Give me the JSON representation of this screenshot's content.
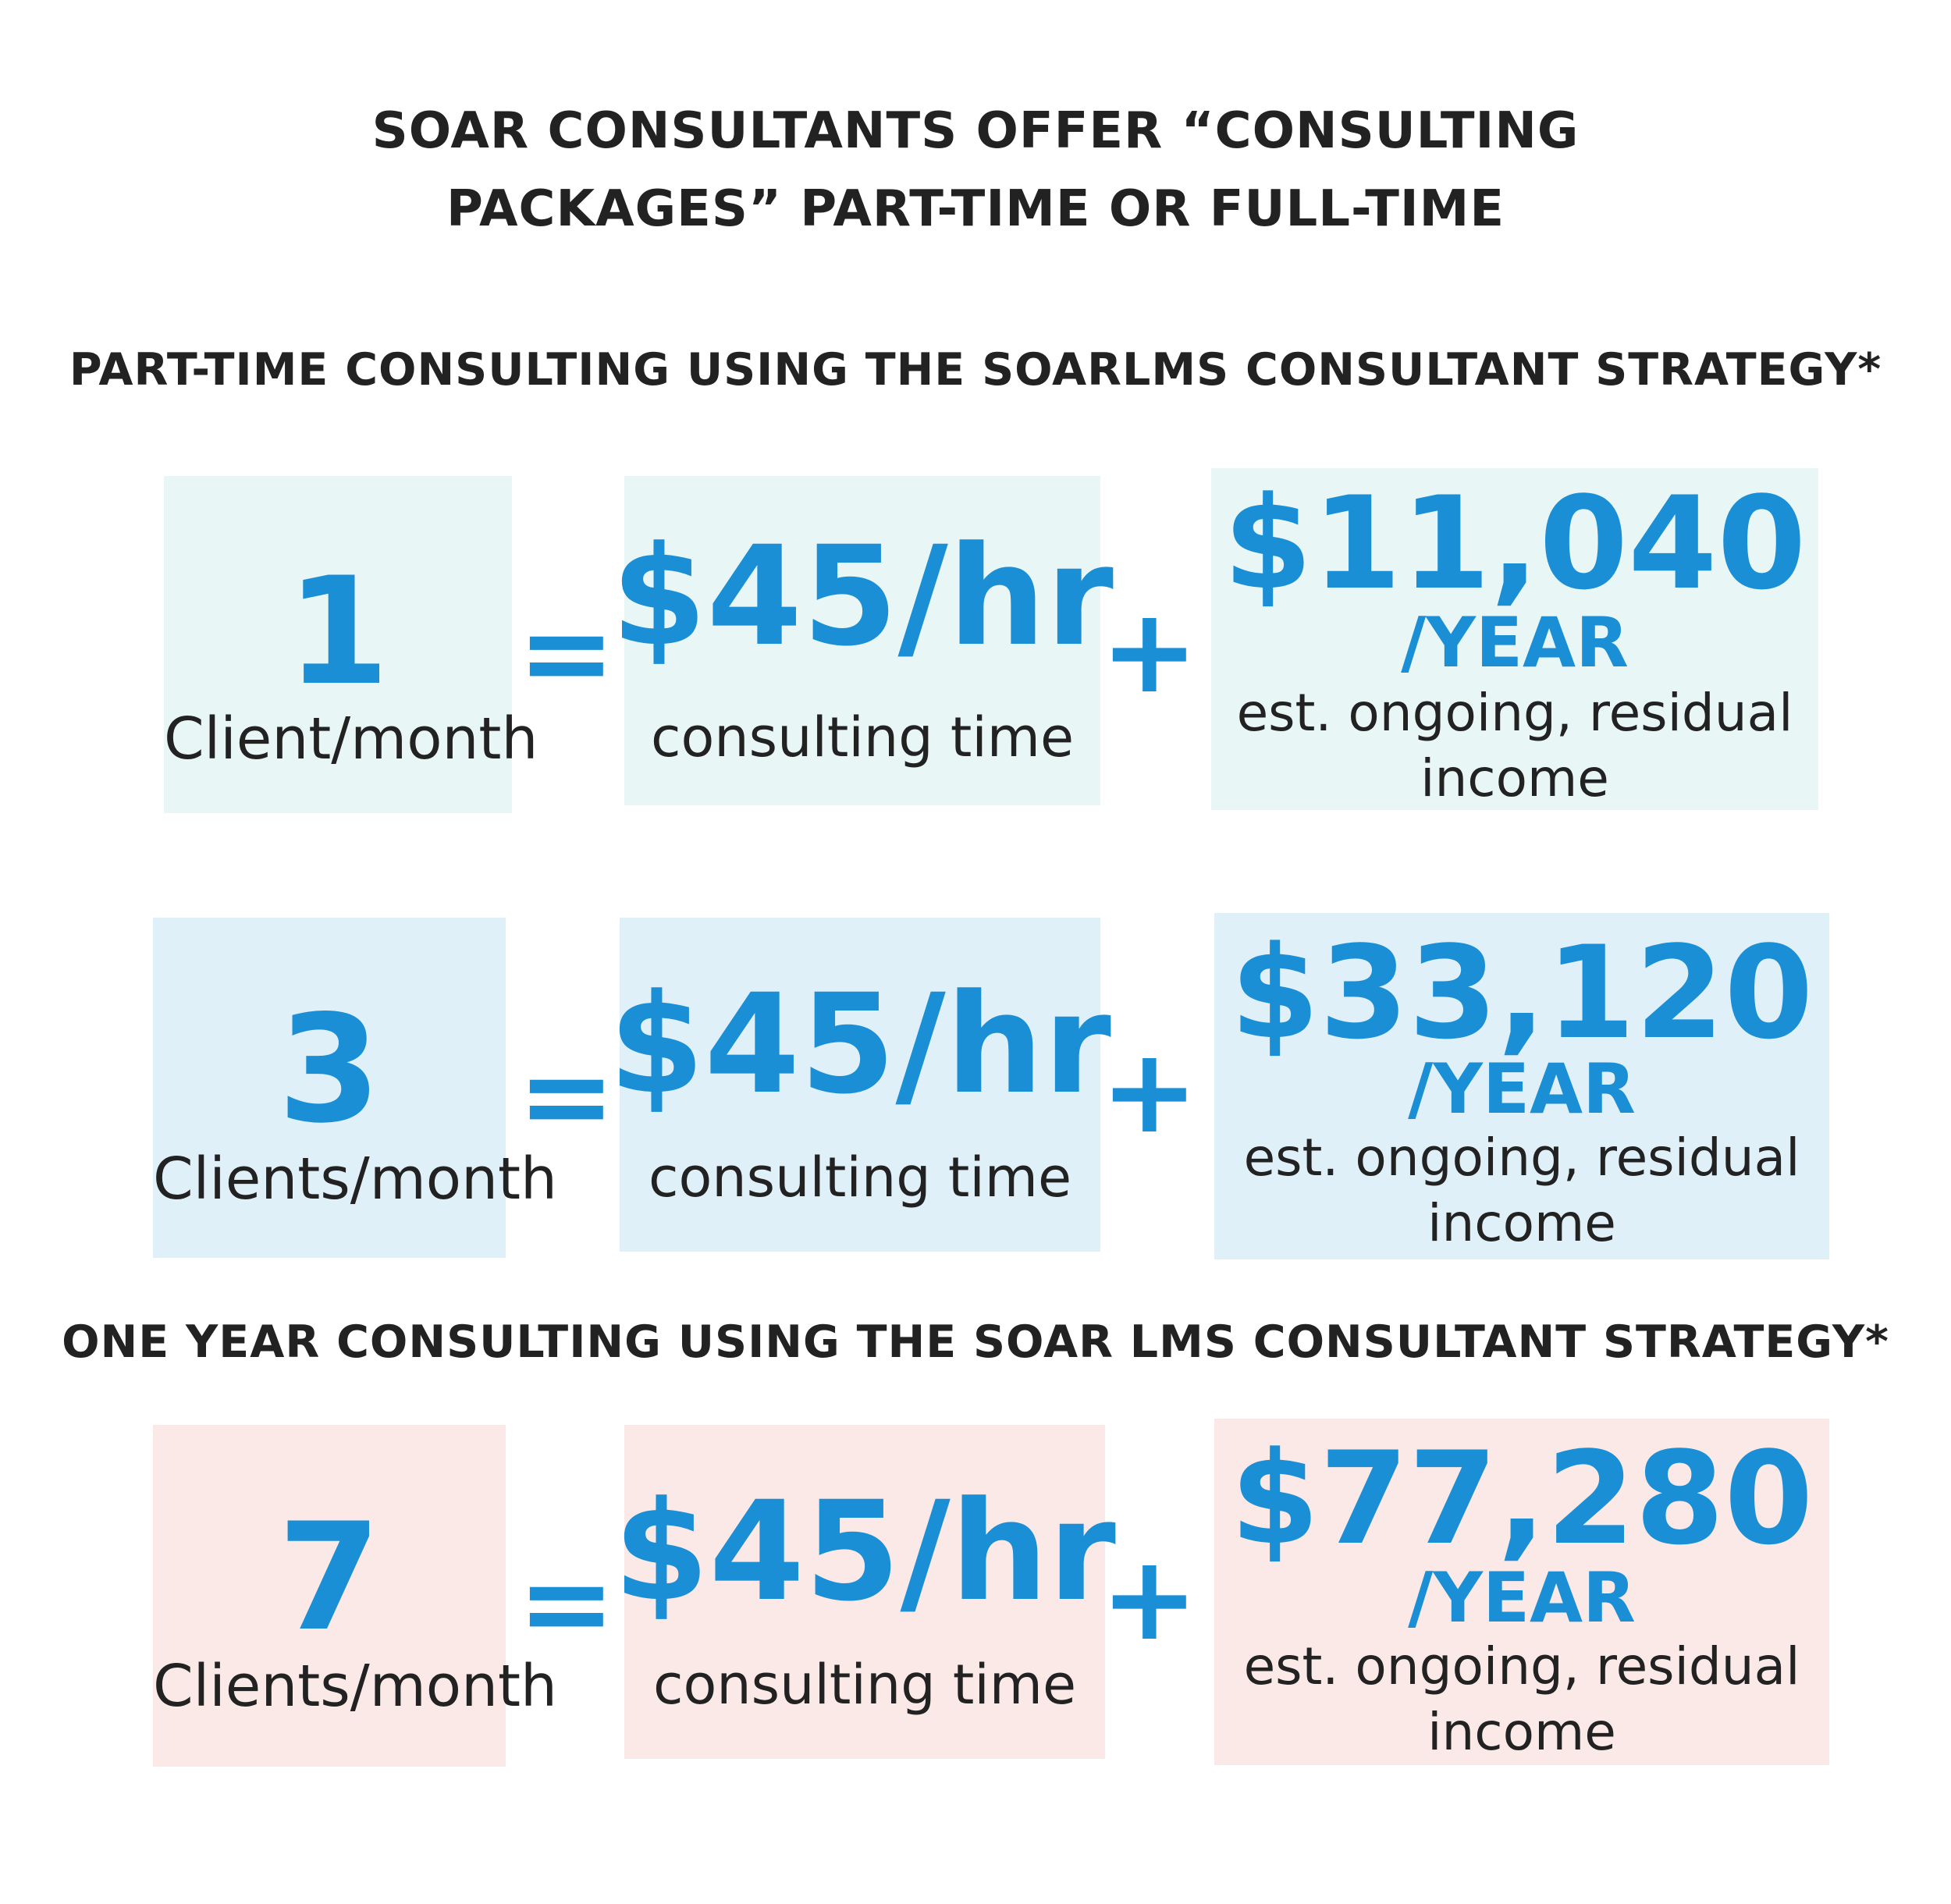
{
  "title": {
    "line1": "SOAR CONSULTANTS OFFER “CONSULTING",
    "line2": "PACKAGES” PART-TIME OR FULL-TIME"
  },
  "sections": {
    "part_time": "PART-TIME CONSULTING USING THE SOARLMS CONSULTANT STRATEGY*",
    "one_year": "ONE YEAR CONSULTING USING THE SOAR LMS CONSULTANT STRATEGY*"
  },
  "operators": {
    "equals": "=",
    "plus": "+"
  },
  "rows": [
    {
      "clients": "1",
      "clients_label": "Client/month",
      "rate": "$45/hr",
      "rate_label": "consulting time",
      "income": "$11,040",
      "income_unit": "/YEAR",
      "income_desc": "est. ongoing, residual income"
    },
    {
      "clients": "3",
      "clients_label": "Clients/month",
      "rate": "$45/hr",
      "rate_label": "consulting time",
      "income": "$33,120",
      "income_unit": "/YEAR",
      "income_desc": "est. ongoing, residual income"
    },
    {
      "clients": "7",
      "clients_label": "Clients/month",
      "rate": "$45/hr",
      "rate_label": "consulting time",
      "income": "$77,280",
      "income_unit": "/YEAR",
      "income_desc": "est. ongoing, residual income"
    }
  ],
  "colors": {
    "accent": "#1a8fd6",
    "text": "#222222",
    "row1_bg": "#e8f6f6",
    "row2_bg": "#dff0f8",
    "row3_bg": "#fbe9e8"
  }
}
